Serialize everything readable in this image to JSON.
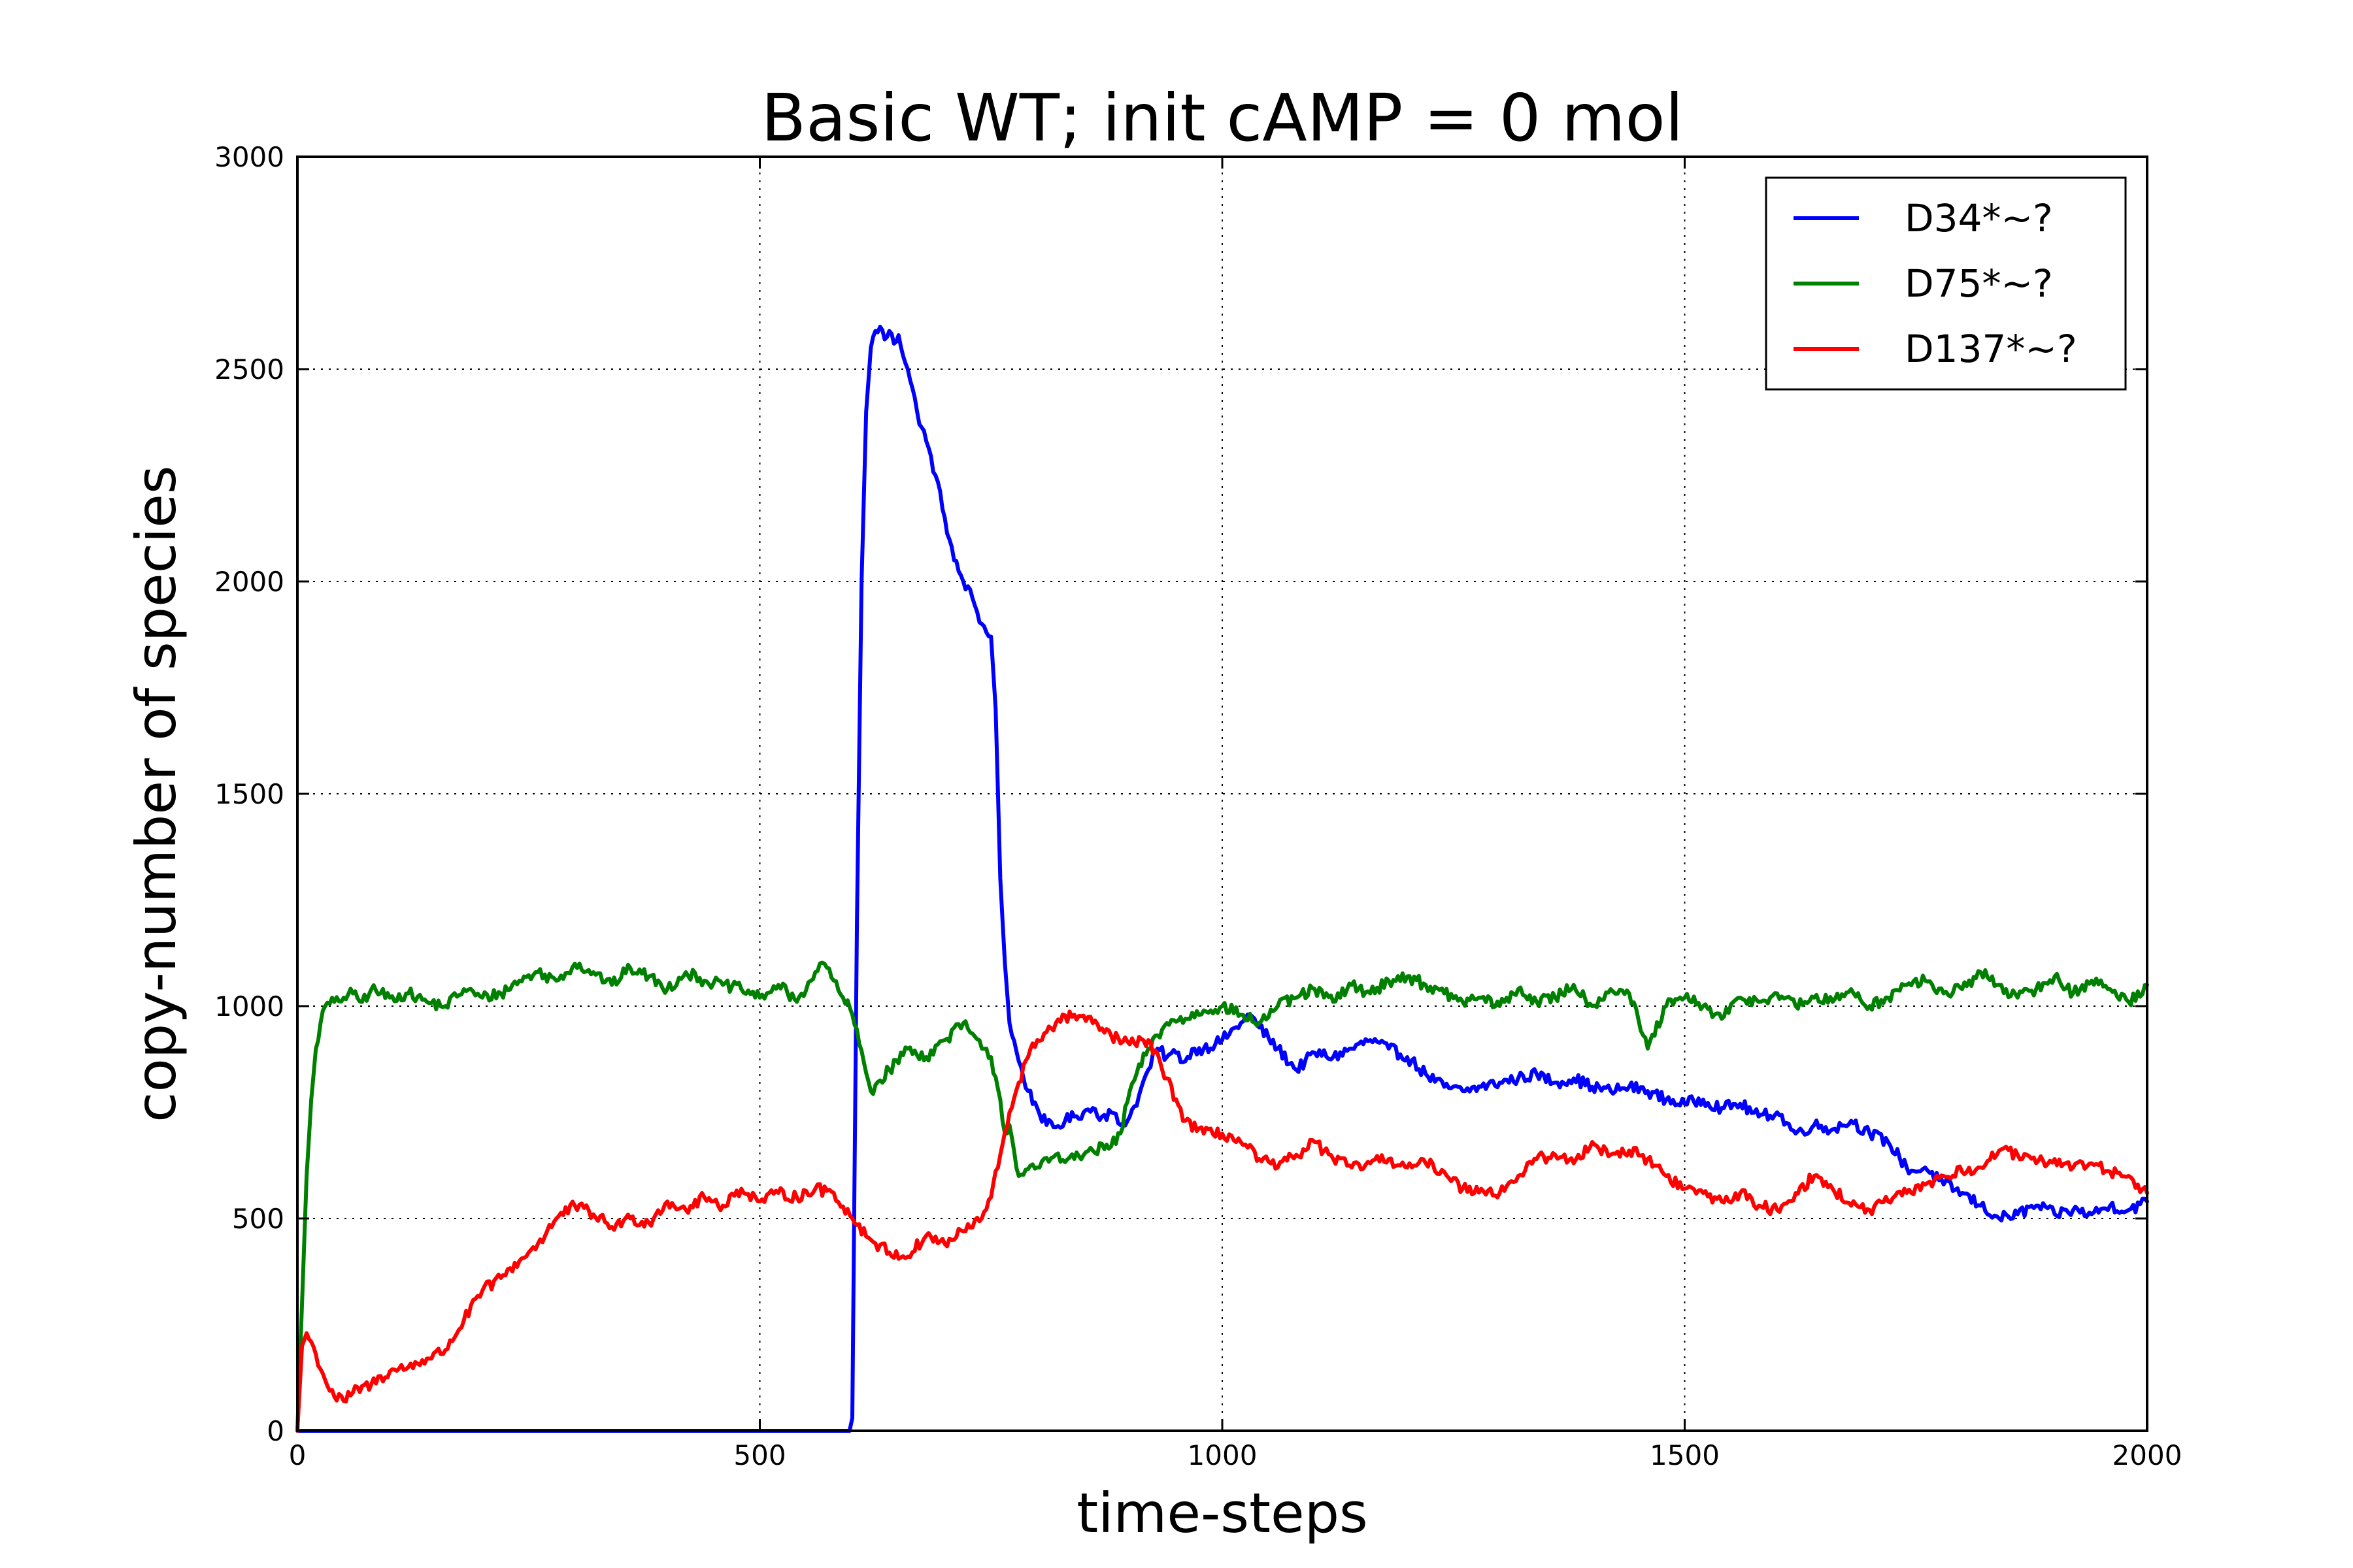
{
  "chart_data": {
    "type": "line",
    "title": "Basic WT; init cAMP = 0 mol",
    "xlabel": "time-steps",
    "ylabel": "copy-number of species",
    "xlim": [
      0,
      2000
    ],
    "ylim": [
      0,
      3000
    ],
    "xticks": [
      0,
      500,
      1000,
      1500,
      2000
    ],
    "yticks": [
      0,
      500,
      1000,
      1500,
      2000,
      2500,
      3000
    ],
    "xtick_labels": [
      "0",
      "500",
      "1000",
      "1500",
      "2000"
    ],
    "ytick_labels": [
      "0",
      "500",
      "1000",
      "1500",
      "2000",
      "2500",
      "3000"
    ],
    "grid": true,
    "legend_position": "top-right",
    "series": [
      {
        "name": "D34*~?",
        "color": "#0000ff",
        "x": [
          0,
          100,
          200,
          300,
          400,
          500,
          597,
          600,
          605,
          610,
          615,
          620,
          625,
          630,
          635,
          640,
          645,
          650,
          660,
          670,
          680,
          690,
          700,
          710,
          720,
          730,
          740,
          745,
          750,
          755,
          760,
          765,
          770,
          780,
          790,
          800,
          810,
          820,
          830,
          840,
          850,
          860,
          870,
          880,
          890,
          900,
          910,
          920,
          930,
          940,
          950,
          960,
          970,
          980,
          1000,
          1020,
          1030,
          1040,
          1060,
          1080,
          1100,
          1120,
          1140,
          1160,
          1180,
          1200,
          1220,
          1240,
          1260,
          1280,
          1300,
          1320,
          1340,
          1360,
          1380,
          1400,
          1420,
          1440,
          1460,
          1480,
          1500,
          1520,
          1540,
          1560,
          1580,
          1600,
          1620,
          1640,
          1660,
          1680,
          1700,
          1720,
          1740,
          1750,
          1760,
          1780,
          1800,
          1820,
          1840,
          1860,
          1880,
          1900,
          1920,
          1940,
          1960,
          1980,
          2000
        ],
        "y": [
          0,
          0,
          0,
          0,
          0,
          0,
          0,
          30,
          1200,
          2000,
          2400,
          2550,
          2590,
          2600,
          2570,
          2590,
          2560,
          2580,
          2500,
          2400,
          2330,
          2250,
          2150,
          2050,
          2000,
          1960,
          1900,
          1880,
          1870,
          1700,
          1300,
          1100,
          960,
          870,
          800,
          760,
          720,
          715,
          730,
          740,
          750,
          760,
          740,
          750,
          720,
          740,
          790,
          850,
          900,
          880,
          890,
          870,
          900,
          900,
          920,
          960,
          980,
          950,
          900,
          850,
          890,
          880,
          900,
          920,
          900,
          880,
          840,
          810,
          800,
          810,
          820,
          830,
          840,
          820,
          830,
          810,
          800,
          810,
          800,
          780,
          770,
          780,
          760,
          770,
          740,
          750,
          700,
          720,
          710,
          730,
          700,
          680,
          620,
          610,
          620,
          580,
          560,
          530,
          500,
          510,
          530,
          510,
          520,
          510,
          530,
          520,
          540
        ]
      },
      {
        "name": "D75*~?",
        "color": "#008000",
        "x": [
          0,
          5,
          10,
          15,
          20,
          25,
          30,
          40,
          50,
          60,
          70,
          80,
          100,
          120,
          140,
          160,
          180,
          200,
          220,
          240,
          260,
          280,
          300,
          320,
          340,
          360,
          380,
          400,
          420,
          440,
          460,
          480,
          500,
          520,
          540,
          560,
          570,
          580,
          590,
          600,
          620,
          640,
          660,
          680,
          700,
          720,
          740,
          750,
          760,
          765,
          770,
          780,
          800,
          820,
          840,
          860,
          880,
          890,
          900,
          920,
          940,
          960,
          980,
          1000,
          1020,
          1040,
          1060,
          1080,
          1100,
          1120,
          1140,
          1160,
          1180,
          1200,
          1220,
          1240,
          1260,
          1280,
          1300,
          1320,
          1340,
          1360,
          1380,
          1400,
          1420,
          1440,
          1460,
          1480,
          1500,
          1520,
          1540,
          1560,
          1580,
          1600,
          1620,
          1640,
          1660,
          1680,
          1700,
          1720,
          1740,
          1760,
          1780,
          1800,
          1820,
          1840,
          1860,
          1880,
          1900,
          1920,
          1940,
          1960,
          1980,
          2000
        ],
        "y": [
          0,
          300,
          600,
          780,
          900,
          960,
          1000,
          1010,
          1020,
          1030,
          1010,
          1040,
          1020,
          1030,
          1010,
          1000,
          1040,
          1020,
          1030,
          1060,
          1080,
          1060,
          1100,
          1080,
          1050,
          1090,
          1070,
          1040,
          1080,
          1060,
          1050,
          1040,
          1020,
          1050,
          1010,
          1080,
          1100,
          1060,
          1020,
          980,
          800,
          850,
          900,
          880,
          920,
          960,
          900,
          880,
          780,
          700,
          720,
          600,
          620,
          650,
          640,
          660,
          670,
          700,
          800,
          900,
          960,
          970,
          990,
          1000,
          980,
          960,
          1000,
          1020,
          1040,
          1010,
          1050,
          1030,
          1060,
          1070,
          1050,
          1030,
          1010,
          1020,
          1000,
          1040,
          1010,
          1020,
          1050,
          1000,
          1040,
          1030,
          900,
          1000,
          1020,
          1000,
          970,
          1020,
          1010,
          1030,
          1000,
          1020,
          1010,
          1040,
          1000,
          1020,
          1050,
          1060,
          1030,
          1040,
          1080,
          1050,
          1020,
          1040,
          1070,
          1030,
          1060,
          1040,
          1010,
          1050
        ]
      },
      {
        "name": "D137*~?",
        "color": "#ff0000",
        "x": [
          0,
          5,
          10,
          20,
          30,
          40,
          50,
          60,
          80,
          100,
          120,
          140,
          160,
          180,
          200,
          220,
          240,
          260,
          280,
          300,
          320,
          340,
          360,
          380,
          400,
          420,
          440,
          460,
          480,
          500,
          520,
          540,
          560,
          580,
          600,
          620,
          640,
          660,
          680,
          700,
          720,
          740,
          750,
          760,
          770,
          780,
          790,
          800,
          820,
          840,
          860,
          880,
          900,
          920,
          940,
          960,
          980,
          1000,
          1020,
          1040,
          1060,
          1080,
          1100,
          1120,
          1140,
          1160,
          1180,
          1200,
          1220,
          1240,
          1260,
          1280,
          1300,
          1320,
          1340,
          1360,
          1380,
          1400,
          1420,
          1440,
          1460,
          1480,
          1500,
          1520,
          1540,
          1560,
          1580,
          1600,
          1620,
          1640,
          1660,
          1680,
          1700,
          1720,
          1740,
          1760,
          1780,
          1800,
          1820,
          1840,
          1860,
          1880,
          1900,
          1920,
          1940,
          1960,
          1980,
          2000
        ],
        "y": [
          0,
          200,
          230,
          180,
          120,
          80,
          70,
          90,
          110,
          140,
          150,
          170,
          190,
          260,
          330,
          360,
          400,
          440,
          500,
          530,
          510,
          480,
          500,
          490,
          540,
          520,
          550,
          530,
          570,
          540,
          560,
          550,
          570,
          560,
          500,
          450,
          420,
          410,
          460,
          440,
          470,
          500,
          550,
          650,
          750,
          820,
          880,
          920,
          960,
          980,
          960,
          930,
          910,
          920,
          830,
          730,
          700,
          700,
          680,
          640,
          620,
          650,
          680,
          640,
          620,
          630,
          640,
          620,
          630,
          610,
          570,
          570,
          560,
          600,
          640,
          650,
          630,
          680,
          650,
          660,
          640,
          600,
          570,
          560,
          540,
          560,
          530,
          520,
          560,
          600,
          570,
          530,
          520,
          540,
          560,
          580,
          600,
          610,
          620,
          660,
          650,
          630,
          640,
          620,
          630,
          610,
          600,
          560
        ]
      }
    ]
  }
}
